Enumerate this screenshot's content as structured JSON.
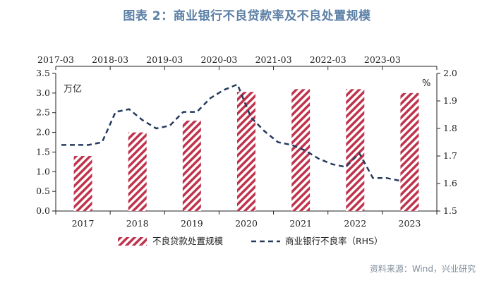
{
  "header": {
    "title": "图表 2：商业银行不良贷款率及不良处置规模"
  },
  "source_note": "资料来源：Wind，兴业研究",
  "chart_data": {
    "type": "bar+line",
    "left_unit": "万亿",
    "right_unit": "%",
    "bar_series": {
      "name": "不良贷款处置规模",
      "categories": [
        "2017",
        "2018",
        "2019",
        "2020",
        "2021",
        "2022",
        "2023"
      ],
      "values": [
        1.4,
        2.0,
        2.3,
        3.03,
        3.1,
        3.1,
        3.0
      ],
      "color": "#c0334d",
      "pattern": "diagonal-stripes"
    },
    "line_series": {
      "name": "商业银行不良率（RHS）",
      "axis": "right",
      "style": "dashed",
      "color": "#243b5e",
      "points": [
        {
          "t": 0.0,
          "v": 1.74
        },
        {
          "t": 0.25,
          "v": 1.74
        },
        {
          "t": 0.5,
          "v": 1.74
        },
        {
          "t": 0.75,
          "v": 1.75
        },
        {
          "t": 1.0,
          "v": 1.86
        },
        {
          "t": 1.25,
          "v": 1.87
        },
        {
          "t": 1.5,
          "v": 1.83
        },
        {
          "t": 1.75,
          "v": 1.8
        },
        {
          "t": 2.0,
          "v": 1.81
        },
        {
          "t": 2.25,
          "v": 1.86
        },
        {
          "t": 2.5,
          "v": 1.86
        },
        {
          "t": 2.75,
          "v": 1.91
        },
        {
          "t": 3.0,
          "v": 1.94
        },
        {
          "t": 3.25,
          "v": 1.96
        },
        {
          "t": 3.5,
          "v": 1.84
        },
        {
          "t": 3.75,
          "v": 1.79
        },
        {
          "t": 4.0,
          "v": 1.75
        },
        {
          "t": 4.25,
          "v": 1.74
        },
        {
          "t": 4.5,
          "v": 1.72
        },
        {
          "t": 4.75,
          "v": 1.69
        },
        {
          "t": 5.0,
          "v": 1.67
        },
        {
          "t": 5.25,
          "v": 1.66
        },
        {
          "t": 5.5,
          "v": 1.71
        },
        {
          "t": 5.75,
          "v": 1.62
        },
        {
          "t": 6.0,
          "v": 1.62
        },
        {
          "t": 6.25,
          "v": 1.61
        }
      ]
    },
    "top_axis_labels": [
      "2017-03",
      "2018-03",
      "2019-03",
      "2020-03",
      "2021-03",
      "2022-03",
      "2023-03"
    ],
    "left_axis": {
      "min": 0,
      "max": 3.5,
      "ticks": [
        "0.0",
        "0.5",
        "1.0",
        "1.5",
        "2.0",
        "2.5",
        "3.0",
        "3.5"
      ]
    },
    "right_axis": {
      "min": 1.5,
      "max": 2.0,
      "ticks": [
        "1.5",
        "1.6",
        "1.7",
        "1.8",
        "1.9",
        "2.0"
      ]
    },
    "grid": false,
    "legend_position": "bottom"
  }
}
